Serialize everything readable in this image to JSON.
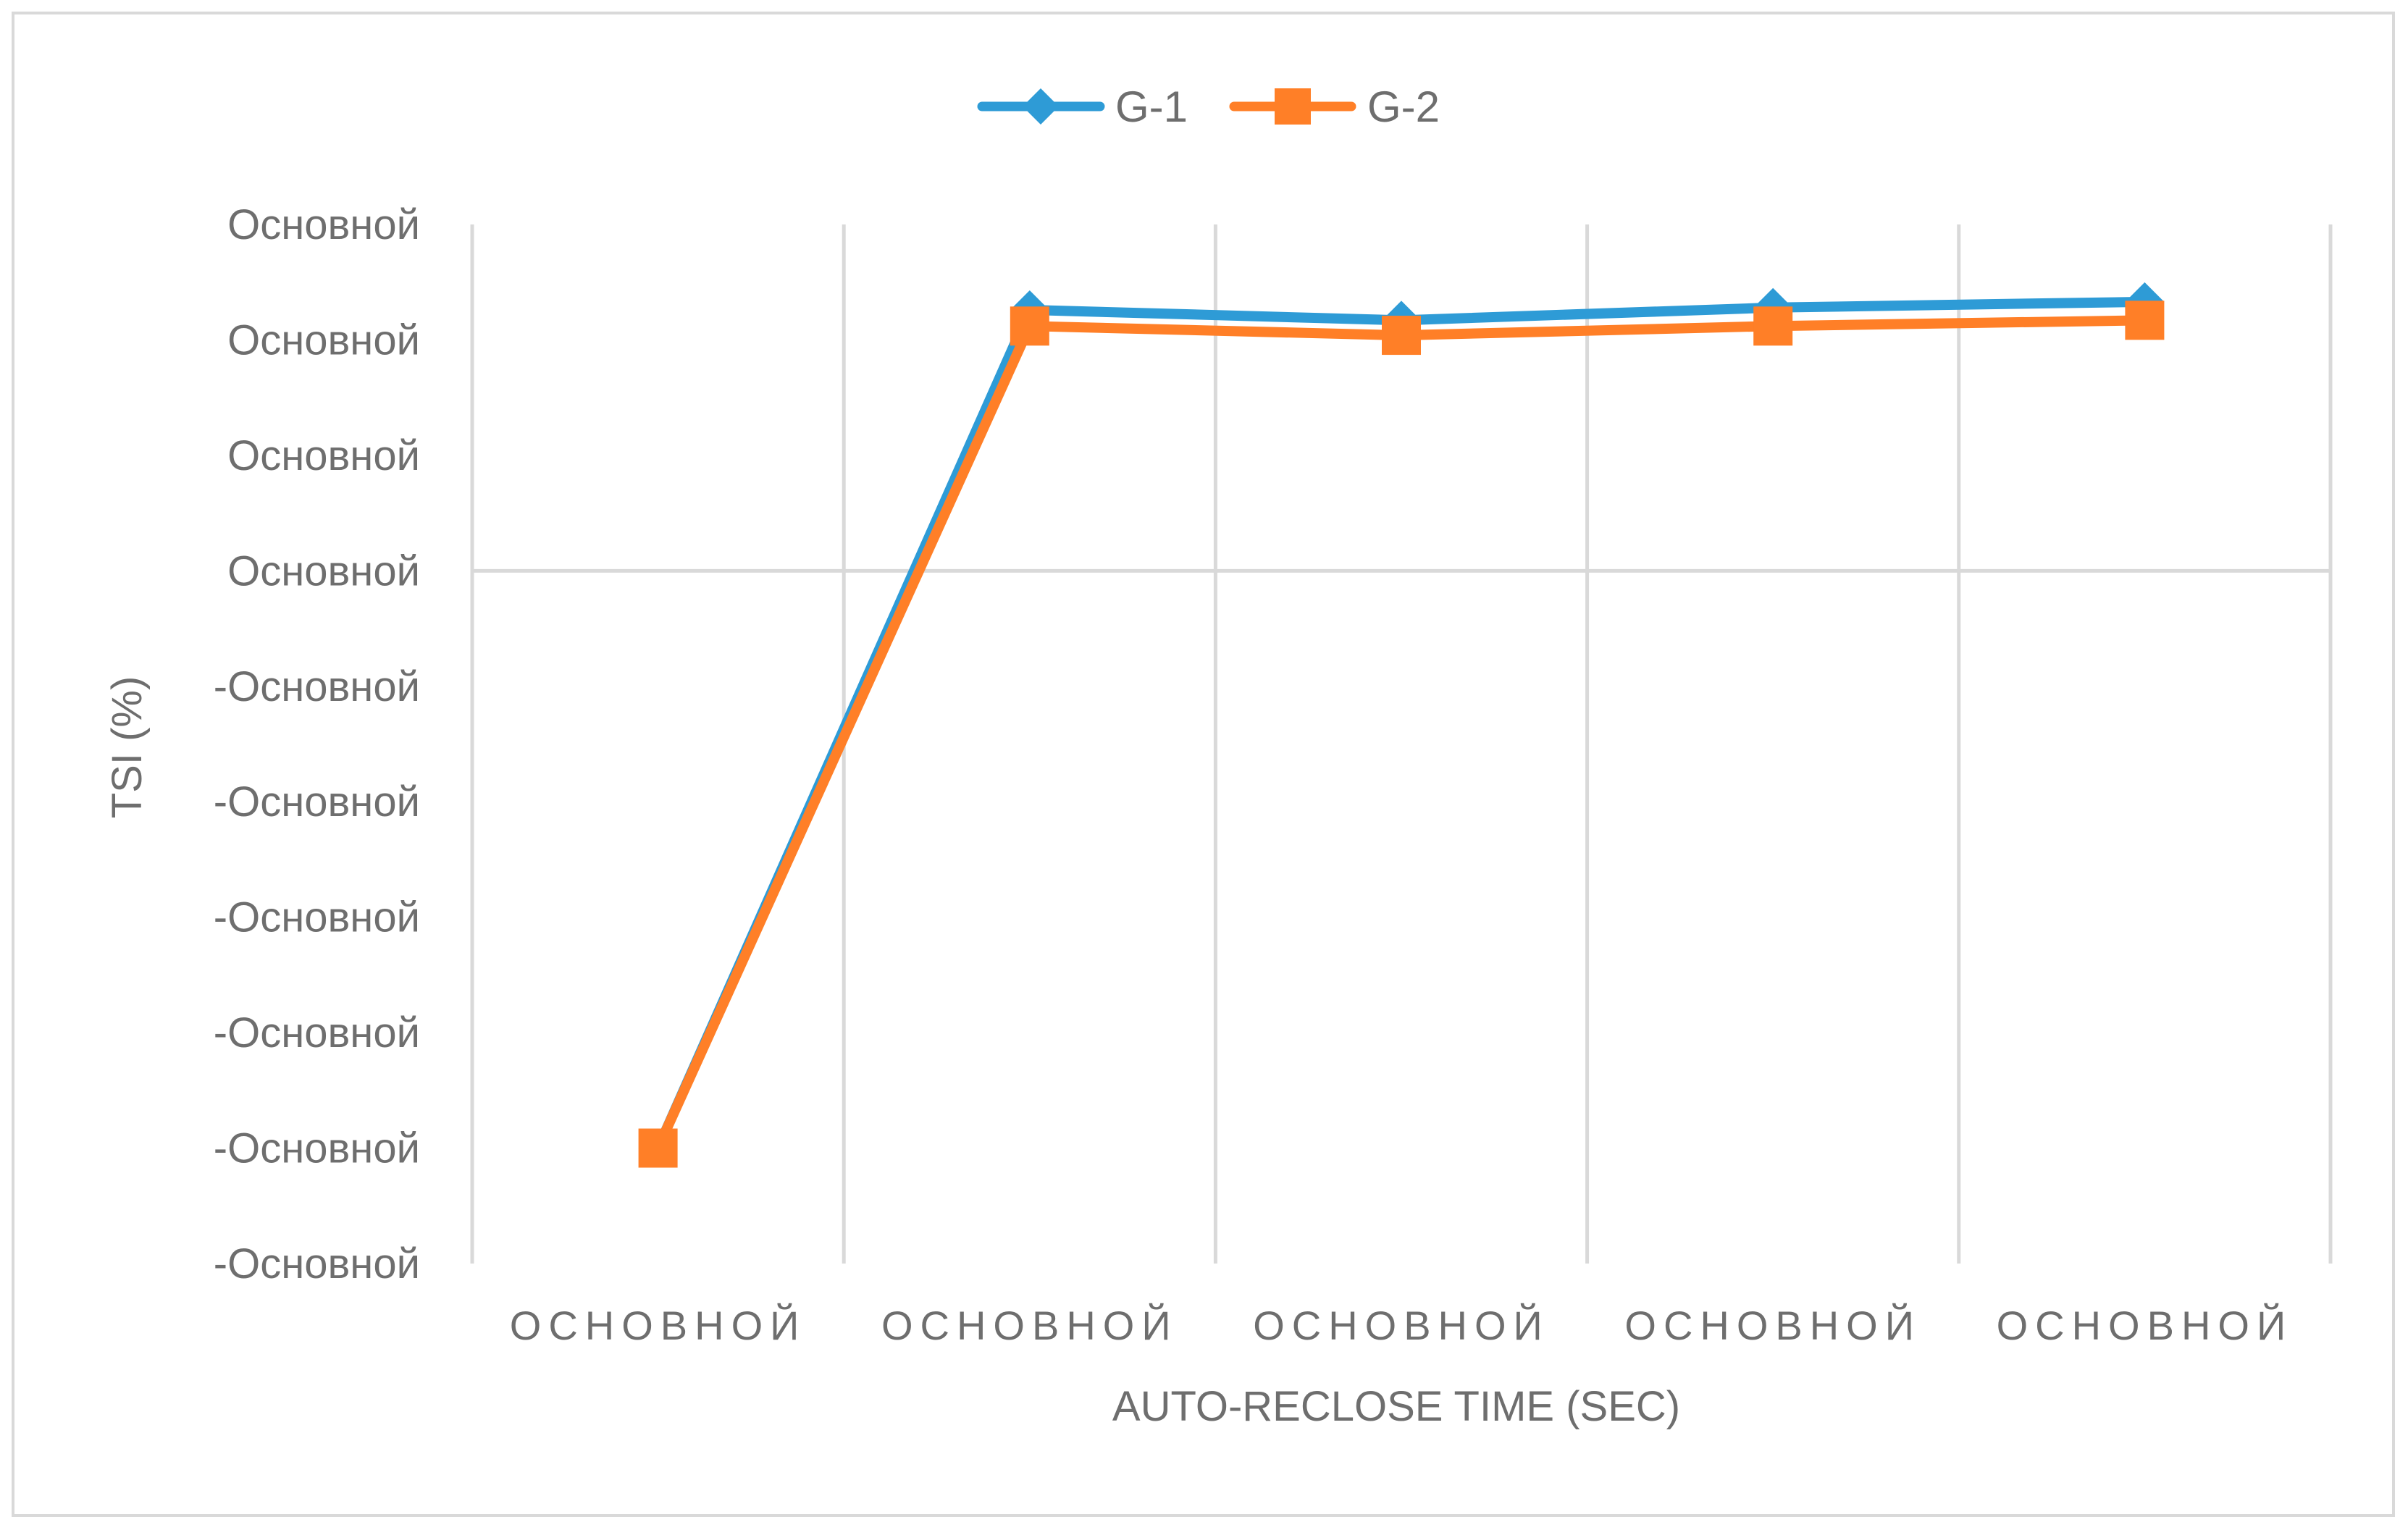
{
  "chart_data": {
    "type": "line",
    "title": "",
    "xlabel": "AUTO-RECLOSE TIME (SEC)",
    "ylabel": "TSI (%)",
    "categories": [
      "ОСНОВНОЙ",
      "ОСНОВНОЙ",
      "ОСНОВНОЙ",
      "ОСНОВНОЙ",
      "ОСНОВНОЙ"
    ],
    "y_tick_labels": [
      "Основной",
      "Основной",
      "Основной",
      "Основной",
      "-Основной",
      "-Основной",
      "-Основной",
      "-Основной",
      "-Основной",
      "-Основной"
    ],
    "ylim": [
      -60,
      30
    ],
    "y_tick_values": [
      30,
      20,
      10,
      0,
      -10,
      -20,
      -30,
      -40,
      -50,
      -60
    ],
    "grid": true,
    "legend": "top-center",
    "series": [
      {
        "name": "G-1",
        "color": "#2E9BD6",
        "marker": "diamond",
        "values": [
          -50.0,
          22.6,
          21.7,
          22.8,
          23.3
        ]
      },
      {
        "name": "G-2",
        "color": "#FF7F27",
        "marker": "square",
        "values": [
          -50.0,
          21.2,
          20.4,
          21.2,
          21.7
        ]
      }
    ]
  }
}
